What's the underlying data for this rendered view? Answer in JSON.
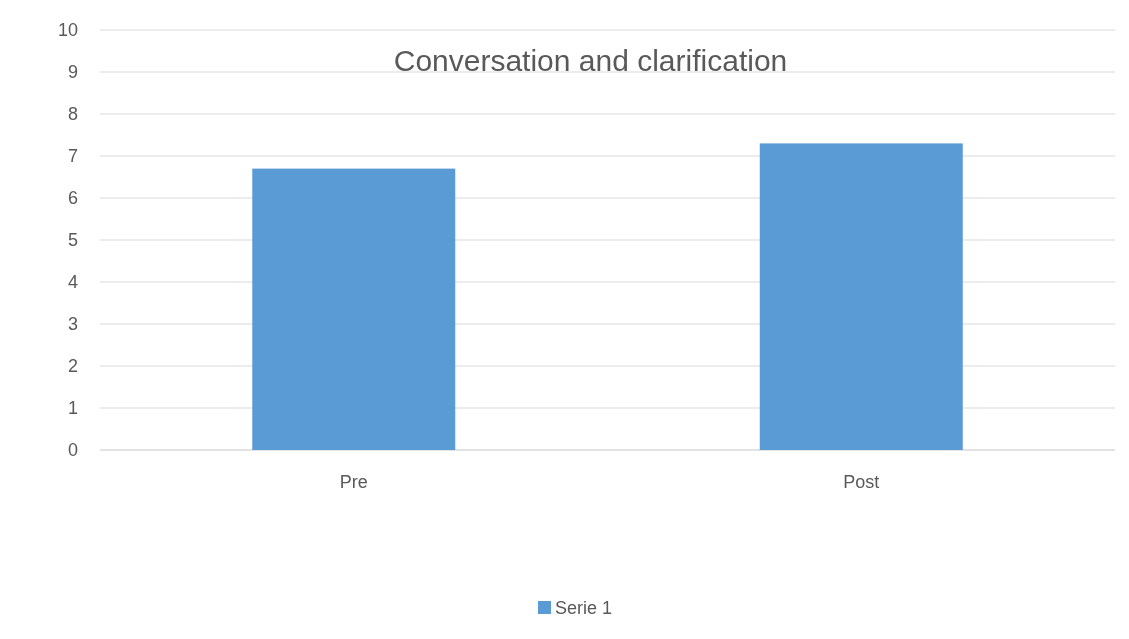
{
  "chart_data": {
    "type": "bar",
    "title": "Conversation and clarification",
    "categories": [
      "Pre",
      "Post"
    ],
    "series": [
      {
        "name": "Serie 1",
        "color": "#5b9bd5",
        "values": [
          6.7,
          7.3
        ]
      }
    ],
    "ylim": [
      0,
      10
    ],
    "yticks": [
      0,
      1,
      2,
      3,
      4,
      5,
      6,
      7,
      8,
      9,
      10
    ],
    "grid": "y",
    "legend": "bottom"
  }
}
